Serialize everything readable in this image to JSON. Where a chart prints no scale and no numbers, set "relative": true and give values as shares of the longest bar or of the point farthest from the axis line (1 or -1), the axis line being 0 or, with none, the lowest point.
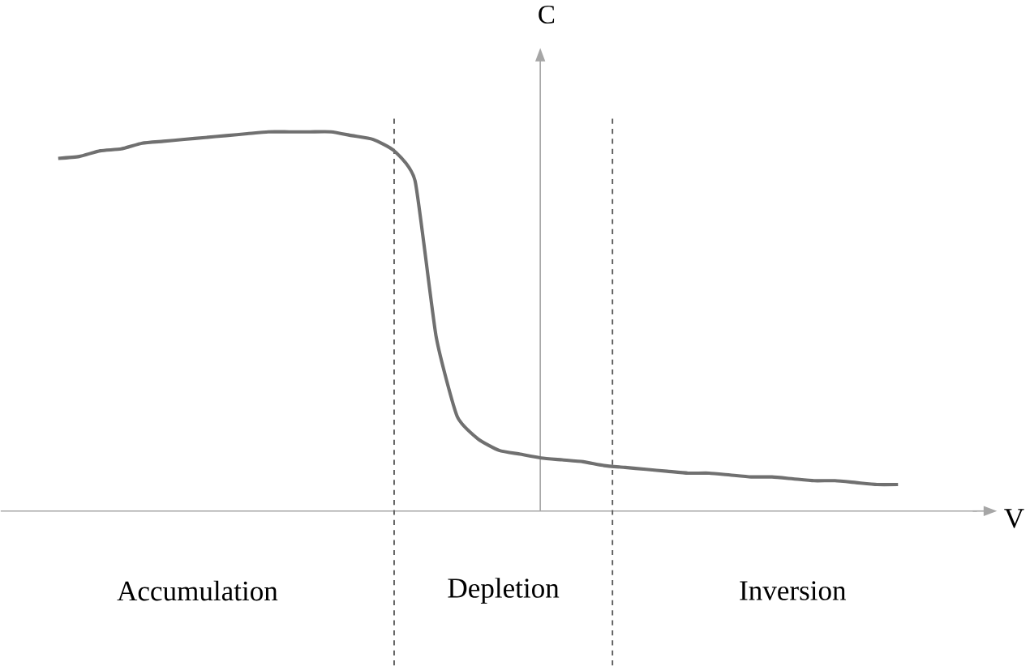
{
  "chart_data": {
    "type": "line",
    "relative": true,
    "xlabel": "V",
    "ylabel": "C",
    "categories": [
      null,
      null,
      null,
      null,
      null,
      null,
      null,
      null,
      null,
      null,
      null,
      null,
      null,
      null,
      null,
      null,
      null,
      null,
      null,
      null,
      null,
      null,
      null,
      null,
      null,
      null,
      null,
      null,
      null,
      null,
      null,
      null,
      null,
      null,
      null,
      null,
      null,
      null,
      null,
      null,
      null
    ],
    "series": [
      {
        "color": "#707070",
        "values": [
          0.93,
          0.935,
          0.95,
          0.955,
          0.97,
          0.975,
          0.98,
          0.985,
          0.99,
          0.995,
          1.0,
          1.0,
          1.0,
          1.0,
          0.99,
          0.98,
          0.95,
          0.87,
          0.46,
          0.25,
          0.19,
          0.16,
          0.15,
          0.14,
          0.135,
          0.13,
          0.12,
          0.115,
          0.11,
          0.105,
          0.1,
          0.1,
          0.095,
          0.09,
          0.09,
          0.085,
          0.08,
          0.08,
          0.075,
          0.07,
          0.07
        ]
      }
    ],
    "annotations": [
      "Accumulation",
      "Depletion",
      "Inversion"
    ],
    "marker": "none",
    "line_style": "solid"
  }
}
